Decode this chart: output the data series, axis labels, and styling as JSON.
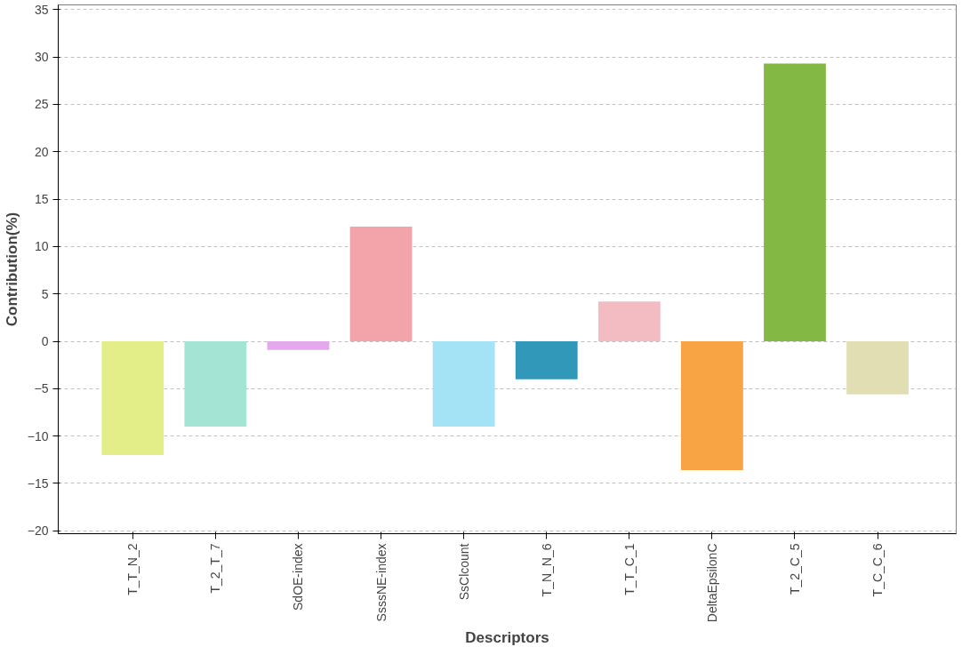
{
  "chart_data": {
    "type": "bar",
    "xlabel": "Descriptors",
    "ylabel": "Contribution(%)",
    "categories": [
      "T_T_N_2",
      "T_2_T_7",
      "SdOE-index",
      "SsssNE-index",
      "SsClcount",
      "T_N_N_6",
      "T_T_C_1",
      "DeltaEpsilonC",
      "T_2_C_5",
      "T_C_C_6"
    ],
    "values": [
      -12,
      -9,
      -0.9,
      12.1,
      -9,
      -4,
      4.2,
      -13.6,
      29.3,
      -5.6
    ],
    "colors": [
      "#e4ee88",
      "#a4e4d4",
      "#e4a8ec",
      "#f2a4aa",
      "#a4e2f6",
      "#3298ba",
      "#f2bcc2",
      "#f8a444",
      "#84b844",
      "#e2deb4"
    ],
    "ylim": [
      -20.3,
      35.5
    ],
    "yticks": [
      -20,
      -15,
      -10,
      -5,
      0,
      5,
      10,
      15,
      20,
      25,
      30,
      35
    ],
    "grid": "y"
  }
}
